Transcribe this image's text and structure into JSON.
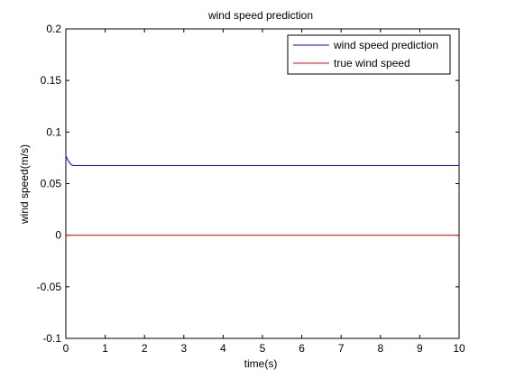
{
  "chart_data": {
    "type": "line",
    "title": "wind speed prediction",
    "xlabel": "time(s)",
    "ylabel": "wind speed(m/s)",
    "xlim": [
      0,
      10
    ],
    "ylim": [
      -0.1,
      0.2
    ],
    "xticks": [
      0,
      1,
      2,
      3,
      4,
      5,
      6,
      7,
      8,
      9,
      10
    ],
    "xtick_labels": [
      "0",
      "1",
      "2",
      "3",
      "4",
      "5",
      "6",
      "7",
      "8",
      "9",
      "10"
    ],
    "yticks": [
      -0.1,
      -0.05,
      0,
      0.05,
      0.1,
      0.15,
      0.2
    ],
    "ytick_labels": [
      "-0.1",
      "-0.05",
      "0",
      "0.05",
      "0.1",
      "0.15",
      "0.2"
    ],
    "grid": false,
    "legend_position": "top-right",
    "series": [
      {
        "name": "wind speed prediction",
        "color": "#0000ff",
        "x": [
          0,
          0.05,
          0.1,
          0.15,
          0.2,
          0.3,
          1,
          2,
          3,
          4,
          5,
          6,
          7,
          8,
          9,
          10
        ],
        "y": [
          0.077,
          0.073,
          0.07,
          0.068,
          0.0675,
          0.0675,
          0.0675,
          0.0675,
          0.0675,
          0.0675,
          0.0675,
          0.0675,
          0.0675,
          0.0675,
          0.0675,
          0.0675
        ]
      },
      {
        "name": "true wind speed",
        "color": "#ff0000",
        "x": [
          0,
          10
        ],
        "y": [
          0,
          0
        ]
      }
    ]
  }
}
